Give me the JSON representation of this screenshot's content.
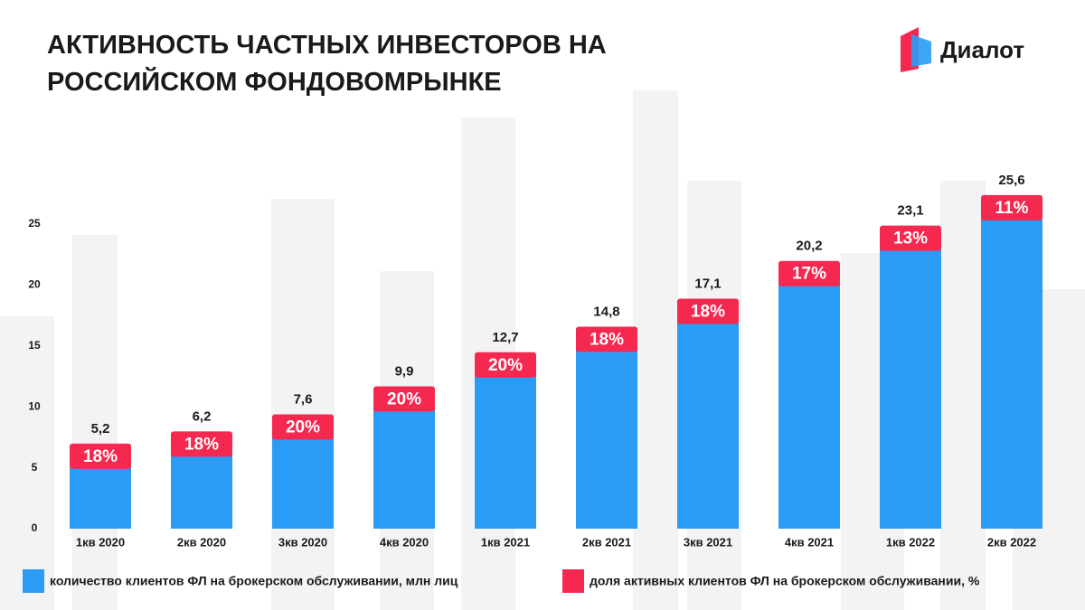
{
  "brand": "Диалот",
  "chart_data": {
    "type": "bar",
    "title": [
      "АКТИВНОСТЬ ЧАСТНЫХ ИНВЕСТОРОВ НА",
      "РОССИЙСКОМ ФОНДОВОМРЫНКЕ"
    ],
    "categories": [
      "1кв 2020",
      "2кв 2020",
      "3кв 2020",
      "4кв 2020",
      "1кв 2021",
      "2кв 2021",
      "3кв 2021",
      "4кв 2021",
      "1кв 2022",
      "2кв 2022"
    ],
    "series": [
      {
        "name": "количество клиентов ФЛ на брокерском обслуживании, млн лиц",
        "color": "#2a9cf5",
        "values": [
          5.2,
          6.2,
          7.6,
          9.9,
          12.7,
          14.8,
          17.1,
          20.2,
          23.1,
          25.6
        ],
        "value_labels": [
          "5,2",
          "6,2",
          "7,6",
          "9,9",
          "12,7",
          "14,8",
          "17,1",
          "20,2",
          "23,1",
          "25,6"
        ]
      },
      {
        "name": "доля активных  клиентов ФЛ на брокерском обслуживании, %",
        "color": "#f5284f",
        "values": [
          18,
          18,
          20,
          20,
          20,
          18,
          18,
          17,
          13,
          11
        ],
        "value_labels": [
          "18%",
          "18%",
          "20%",
          "20%",
          "20%",
          "18%",
          "18%",
          "17%",
          "13%",
          "11%"
        ]
      }
    ],
    "ylim": [
      0,
      25
    ],
    "yticks": [
      0,
      5,
      10,
      15,
      20,
      25
    ],
    "grid": false
  }
}
